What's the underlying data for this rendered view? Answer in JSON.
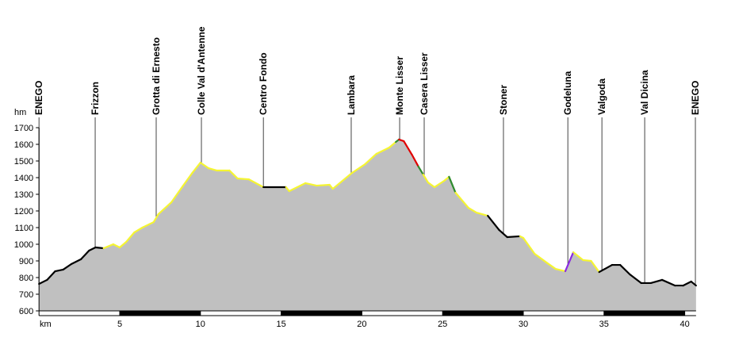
{
  "chart_data": {
    "type": "area",
    "y_unit": "hm",
    "x_unit": "km",
    "places": [
      {
        "name": "ENEGO",
        "km": 0
      },
      {
        "name": "Frizzon",
        "km": 3.48
      },
      {
        "name": "Grotta di Ernesto",
        "km": 7.26
      },
      {
        "name": "Colle Val d'Antenne",
        "km": 10.06
      },
      {
        "name": "Centro Fondo",
        "km": 13.9
      },
      {
        "name": "Lambara",
        "km": 19.34
      },
      {
        "name": "Monte Lisser",
        "km": 22.34
      },
      {
        "name": "Casera Lisser",
        "km": 23.86
      },
      {
        "name": "Stoner",
        "km": 28.77
      },
      {
        "name": "Godeluna",
        "km": 32.76
      },
      {
        "name": "Valgoda",
        "km": 34.87
      },
      {
        "name": "Val Dicina",
        "km": 37.52
      },
      {
        "name": "ENEGO",
        "km": 40.66
      }
    ],
    "x": [
      0,
      0.5,
      1.0,
      1.5,
      2.0,
      2.6,
      3.1,
      3.5,
      4.0,
      4.6,
      5.0,
      5.4,
      5.9,
      6.4,
      7.1,
      7.4,
      8.2,
      8.9,
      9.5,
      10.0,
      10.5,
      11.0,
      11.8,
      12.3,
      13.0,
      13.9,
      15.3,
      15.5,
      16.5,
      17.2,
      18.0,
      18.2,
      19.4,
      20.2,
      20.9,
      21.7,
      22.1,
      22.3,
      22.6,
      23.1,
      23.5,
      23.8,
      24.1,
      24.5,
      25.1,
      25.4,
      25.8,
      26.6,
      27.1,
      27.8,
      28.5,
      29.0,
      29.8,
      30.0,
      30.7,
      31.5,
      32.0,
      32.6,
      33.1,
      33.7,
      34.2,
      34.7,
      35.5,
      36.0,
      36.6,
      37.3,
      37.9,
      38.6,
      39.4,
      39.9,
      40.4,
      40.7
    ],
    "values": [
      762,
      786,
      838,
      848,
      881,
      910,
      962,
      981,
      976,
      1000,
      981,
      1014,
      1071,
      1100,
      1133,
      1181,
      1252,
      1348,
      1429,
      1490,
      1457,
      1443,
      1443,
      1395,
      1390,
      1343,
      1343,
      1319,
      1367,
      1352,
      1357,
      1333,
      1429,
      1481,
      1543,
      1581,
      1614,
      1629,
      1619,
      1538,
      1467,
      1419,
      1371,
      1343,
      1381,
      1405,
      1310,
      1219,
      1190,
      1171,
      1086,
      1043,
      1048,
      1038,
      943,
      886,
      852,
      838,
      952,
      905,
      900,
      833,
      876,
      876,
      819,
      767,
      767,
      786,
      752,
      752,
      776,
      752
    ],
    "segment_colors": [
      "#000000",
      "#000000",
      "#000000",
      "#000000",
      "#000000",
      "#000000",
      "#000000",
      "#000000",
      "#f5f532",
      "#f5f532",
      "#f5f532",
      "#f5f532",
      "#f5f532",
      "#f5f532",
      "#f5f532",
      "#f5f532",
      "#f5f532",
      "#f5f532",
      "#f5f532",
      "#f5f532",
      "#f5f532",
      "#f5f532",
      "#f5f532",
      "#f5f532",
      "#f5f532",
      "#000000",
      "#f5f532",
      "#f5f532",
      "#f5f532",
      "#f5f532",
      "#f5f532",
      "#f5f532",
      "#f5f532",
      "#f5f532",
      "#f5f532",
      "#f5f532",
      "#2e8b2e",
      "#e00000",
      "#e00000",
      "#e00000",
      "#2e8b2e",
      "#f5f532",
      "#f5f532",
      "#f5f532",
      "#f5f532",
      "#2e8b2e",
      "#f5f532",
      "#f5f532",
      "#f5f532",
      "#000000",
      "#000000",
      "#000000",
      "#f5f532",
      "#f5f532",
      "#f5f532",
      "#f5f532",
      "#f5f532",
      "#8a2be2",
      "#f5f532",
      "#f5f532",
      "#f5f532",
      "#000000",
      "#000000",
      "#000000",
      "#000000",
      "#000000",
      "#000000",
      "#000000",
      "#000000",
      "#000000",
      "#000000"
    ],
    "fill_color": "#c0c0c0",
    "xlim": [
      0,
      40.7
    ],
    "ylim": [
      600,
      1700
    ],
    "xticks": [
      5,
      10,
      15,
      20,
      25,
      30,
      35,
      40
    ],
    "yticks": [
      600,
      700,
      800,
      900,
      1000,
      1100,
      1200,
      1300,
      1400,
      1500,
      1600,
      1700
    ]
  }
}
